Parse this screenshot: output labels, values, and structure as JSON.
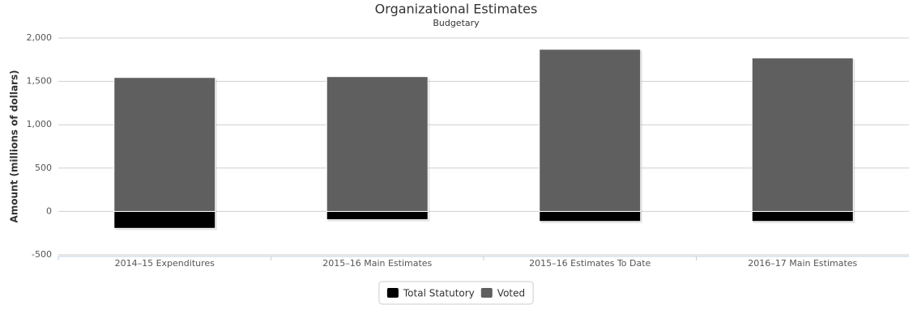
{
  "chart_data": {
    "type": "bar",
    "stacked": true,
    "title": "Organizational Estimates",
    "subtitle": "Budgetary",
    "y_label": "Amount (millions of dollars)",
    "categories": [
      "2014–15 Expenditures",
      "2015–16 Main Estimates",
      "2015–16 Estimates To Date",
      "2016–17 Main Estimates"
    ],
    "series": [
      {
        "name": "Total Statutory",
        "color": "#000000",
        "values": [
          -195,
          -95,
          -115,
          -115
        ]
      },
      {
        "name": "Voted",
        "color": "#5f5f5f",
        "values": [
          1545,
          1555,
          1870,
          1770
        ]
      }
    ],
    "ylim": [
      -500,
      2000
    ],
    "yticks": [
      -500,
      0,
      500,
      {
        "value": 1000,
        "label": "1,000"
      },
      {
        "value": 1500,
        "label": "1,500"
      },
      {
        "value": 2000,
        "label": "2,000"
      }
    ],
    "grid": true,
    "legend": "bottom"
  }
}
